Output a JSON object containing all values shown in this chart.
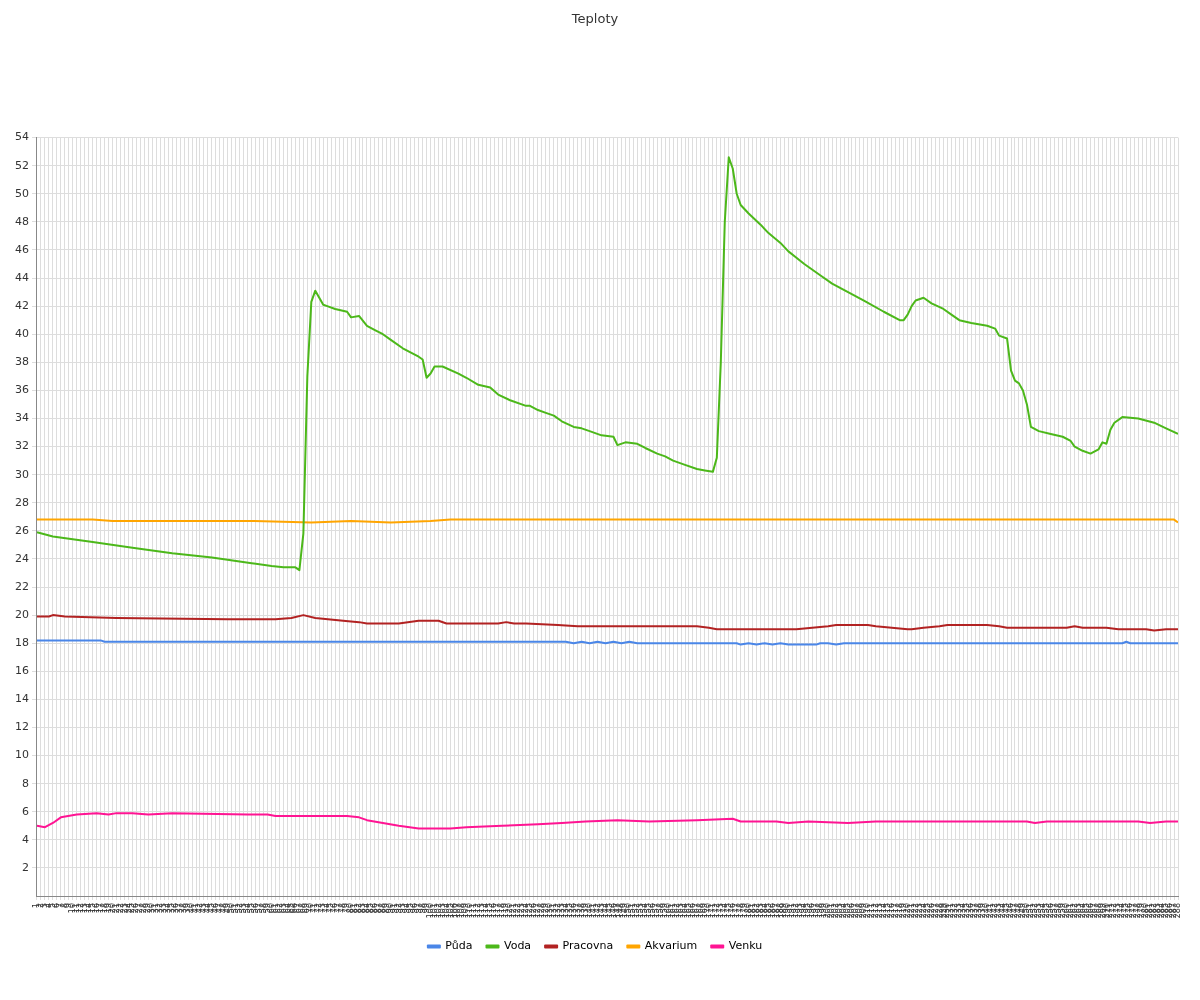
{
  "chart_data": {
    "type": "line",
    "title": "Teploty",
    "xlim": [
      1,
      288
    ],
    "xticks": [
      1,
      2,
      3,
      4,
      5,
      6,
      7,
      8,
      9,
      10,
      11,
      12,
      13,
      14,
      15,
      16,
      17,
      18,
      19,
      20,
      21,
      22,
      23,
      24,
      25,
      26,
      27,
      28,
      29,
      30,
      31,
      32,
      33,
      34,
      35,
      36,
      37,
      38,
      39,
      40,
      41,
      42,
      43,
      44,
      45,
      46,
      47,
      48,
      49,
      50,
      51,
      52,
      53,
      54,
      55,
      56,
      57,
      58,
      59,
      60,
      61,
      62,
      63,
      64,
      65,
      66,
      67,
      68,
      69,
      70,
      71,
      72,
      73,
      74,
      75,
      76,
      77,
      78,
      79,
      80,
      81,
      82,
      83,
      84,
      85,
      86,
      87,
      88,
      89,
      90,
      91,
      92,
      93,
      94,
      95,
      96,
      97,
      98,
      99,
      100,
      101,
      102,
      103,
      104,
      105,
      106,
      107,
      108,
      109,
      110,
      111,
      112,
      113,
      114,
      115,
      116,
      117,
      118,
      119,
      120,
      121,
      122,
      123,
      124,
      125,
      126,
      127,
      128,
      129,
      130,
      131,
      132,
      133,
      134,
      135,
      136,
      137,
      138,
      139,
      140,
      141,
      142,
      143,
      144,
      145,
      146,
      147,
      148,
      149,
      150,
      151,
      152,
      153,
      154,
      155,
      156,
      157,
      158,
      159,
      160,
      161,
      162,
      163,
      164,
      165,
      166,
      167,
      168,
      169,
      170,
      171,
      172,
      173,
      174,
      175,
      176,
      177,
      178,
      179,
      180,
      181,
      182,
      183,
      184,
      185,
      186,
      187,
      188,
      189,
      190,
      191,
      192,
      193,
      194,
      195,
      196,
      197,
      198,
      199,
      200,
      201,
      202,
      203,
      204,
      205,
      206,
      207,
      208,
      209,
      210,
      211,
      212,
      213,
      214,
      215,
      216,
      217,
      218,
      219,
      220,
      221,
      222,
      223,
      224,
      225,
      226,
      227,
      228,
      229,
      230,
      231,
      232,
      233,
      234,
      235,
      236,
      237,
      238,
      239,
      240,
      241,
      242,
      243,
      244,
      245,
      246,
      247,
      248,
      249,
      250,
      251,
      252,
      253,
      254,
      255,
      256,
      257,
      258,
      259,
      260,
      261,
      262,
      263,
      264,
      265,
      266,
      267,
      268,
      269,
      270,
      271,
      272,
      273,
      274,
      275,
      276,
      277,
      278,
      279,
      280,
      281,
      282,
      283,
      284,
      285,
      286,
      287,
      288
    ],
    "ylim": [
      0,
      54
    ],
    "yticks": [
      2,
      4,
      6,
      8,
      10,
      12,
      14,
      16,
      18,
      20,
      22,
      24,
      26,
      28,
      30,
      32,
      34,
      36,
      38,
      40,
      42,
      44,
      46,
      48,
      50,
      52,
      54
    ],
    "grid": true,
    "legend": "bottom",
    "marker": "none",
    "line_style": "solid",
    "series": [
      {
        "name": "Půda",
        "color": "#4a86e8",
        "x": [
          1,
          17,
          18,
          134,
          136,
          138,
          140,
          142,
          144,
          146,
          148,
          150,
          152,
          177,
          178,
          180,
          182,
          184,
          186,
          188,
          190,
          192,
          197,
          198,
          200,
          202,
          204,
          206,
          210,
          274,
          275,
          276,
          288
        ],
        "values": [
          18.2,
          18.2,
          18.1,
          18.1,
          18.0,
          18.1,
          18.0,
          18.1,
          18.0,
          18.1,
          18.0,
          18.1,
          18.0,
          18.0,
          17.9,
          18.0,
          17.9,
          18.0,
          17.9,
          18.0,
          17.9,
          17.9,
          17.9,
          18.0,
          18.0,
          17.9,
          18.0,
          18.0,
          18.0,
          18.0,
          18.1,
          18.0,
          18.0
        ]
      },
      {
        "name": "Voda",
        "color": "#4cb81a",
        "x": [
          1,
          5,
          15,
          25,
          35,
          45,
          55,
          60,
          63,
          66,
          67,
          68,
          69,
          70,
          71,
          72,
          73,
          74,
          76,
          79,
          80,
          82,
          84,
          86,
          88,
          90,
          93,
          97,
          98,
          99,
          100,
          101,
          103,
          107,
          109,
          112,
          115,
          117,
          120,
          124,
          125,
          127,
          129,
          131,
          133,
          136,
          138,
          140,
          143,
          146,
          147,
          149,
          152,
          154,
          157,
          159,
          161,
          164,
          167,
          169,
          171,
          172,
          173,
          174,
          175,
          176,
          177,
          178,
          180,
          183,
          185,
          188,
          190,
          194,
          198,
          201,
          205,
          209,
          214,
          218,
          219,
          220,
          221,
          222,
          224,
          226,
          229,
          231,
          233,
          236,
          240,
          242,
          243,
          245,
          246,
          247,
          248,
          249,
          250,
          251,
          253,
          256,
          259,
          261,
          262,
          264,
          266,
          268,
          269,
          270,
          271,
          272,
          274,
          278,
          282,
          285,
          288
        ],
        "values": [
          25.9,
          25.6,
          25.2,
          24.8,
          24.4,
          24.1,
          23.7,
          23.5,
          23.4,
          23.4,
          23.2,
          25.8,
          37.0,
          42.3,
          43.1,
          42.6,
          42.1,
          42.0,
          41.8,
          41.6,
          41.2,
          41.3,
          40.6,
          40.3,
          40.0,
          39.6,
          39.0,
          38.4,
          38.2,
          36.9,
          37.2,
          37.7,
          37.7,
          37.2,
          36.9,
          36.4,
          36.2,
          35.7,
          35.3,
          34.9,
          34.9,
          34.6,
          34.4,
          34.2,
          33.8,
          33.4,
          33.3,
          33.1,
          32.8,
          32.7,
          32.1,
          32.3,
          32.2,
          31.9,
          31.5,
          31.3,
          31.0,
          30.7,
          30.4,
          30.3,
          30.2,
          31.2,
          38.0,
          48.0,
          52.6,
          51.8,
          50.0,
          49.2,
          48.6,
          47.8,
          47.2,
          46.5,
          45.9,
          45.0,
          44.2,
          43.6,
          43.0,
          42.4,
          41.6,
          41.0,
          41.0,
          41.4,
          42.0,
          42.4,
          42.6,
          42.2,
          41.8,
          41.4,
          41.0,
          40.8,
          40.6,
          40.4,
          39.9,
          39.7,
          37.4,
          36.7,
          36.5,
          36.0,
          35.0,
          33.4,
          33.1,
          32.9,
          32.7,
          32.4,
          32.0,
          31.7,
          31.5,
          31.8,
          32.3,
          32.2,
          33.2,
          33.7,
          34.1,
          34.0,
          33.7,
          33.3,
          32.9
        ]
      },
      {
        "name": "Pracovna",
        "color": "#b22222",
        "x": [
          1,
          4,
          5,
          8,
          21,
          49,
          61,
          65,
          68,
          71,
          78,
          82,
          84,
          92,
          97,
          102,
          104,
          107,
          117,
          119,
          121,
          124,
          132,
          137,
          142,
          147,
          167,
          170,
          172,
          192,
          196,
          200,
          202,
          210,
          212,
          216,
          220,
          221,
          224,
          228,
          230,
          240,
          243,
          245,
          260,
          262,
          264,
          270,
          273,
          280,
          282,
          285,
          288
        ],
        "values": [
          19.9,
          19.9,
          20.0,
          19.9,
          19.8,
          19.7,
          19.7,
          19.8,
          20.0,
          19.8,
          19.6,
          19.5,
          19.4,
          19.4,
          19.6,
          19.6,
          19.4,
          19.4,
          19.4,
          19.5,
          19.4,
          19.4,
          19.3,
          19.2,
          19.2,
          19.2,
          19.2,
          19.1,
          19.0,
          19.0,
          19.1,
          19.2,
          19.3,
          19.3,
          19.2,
          19.1,
          19.0,
          19.0,
          19.1,
          19.2,
          19.3,
          19.3,
          19.2,
          19.1,
          19.1,
          19.2,
          19.1,
          19.1,
          19.0,
          19.0,
          18.9,
          19.0,
          19.0
        ]
      },
      {
        "name": "Akvarium",
        "color": "#ffa500",
        "x": [
          1,
          15,
          20,
          30,
          45,
          55,
          70,
          80,
          90,
          100,
          105,
          200,
          287,
          288
        ],
        "values": [
          26.8,
          26.8,
          26.7,
          26.7,
          26.7,
          26.7,
          26.6,
          26.7,
          26.6,
          26.7,
          26.8,
          26.8,
          26.8,
          26.6
        ]
      },
      {
        "name": "Venku",
        "color": "#ff1493",
        "x": [
          1,
          3,
          5,
          7,
          11,
          16,
          19,
          21,
          25,
          29,
          35,
          54,
          59,
          61,
          79,
          82,
          84,
          88,
          92,
          97,
          105,
          109,
          118,
          127,
          133,
          139,
          147,
          155,
          167,
          176,
          178,
          187,
          190,
          195,
          205,
          212,
          250,
          252,
          255,
          278,
          281,
          285,
          288
        ],
        "values": [
          5.0,
          4.9,
          5.2,
          5.6,
          5.8,
          5.9,
          5.8,
          5.9,
          5.9,
          5.8,
          5.9,
          5.8,
          5.8,
          5.7,
          5.7,
          5.6,
          5.4,
          5.2,
          5.0,
          4.8,
          4.8,
          4.9,
          5.0,
          5.1,
          5.2,
          5.3,
          5.4,
          5.3,
          5.4,
          5.5,
          5.3,
          5.3,
          5.2,
          5.3,
          5.2,
          5.3,
          5.3,
          5.2,
          5.3,
          5.3,
          5.2,
          5.3,
          5.3
        ]
      }
    ]
  }
}
